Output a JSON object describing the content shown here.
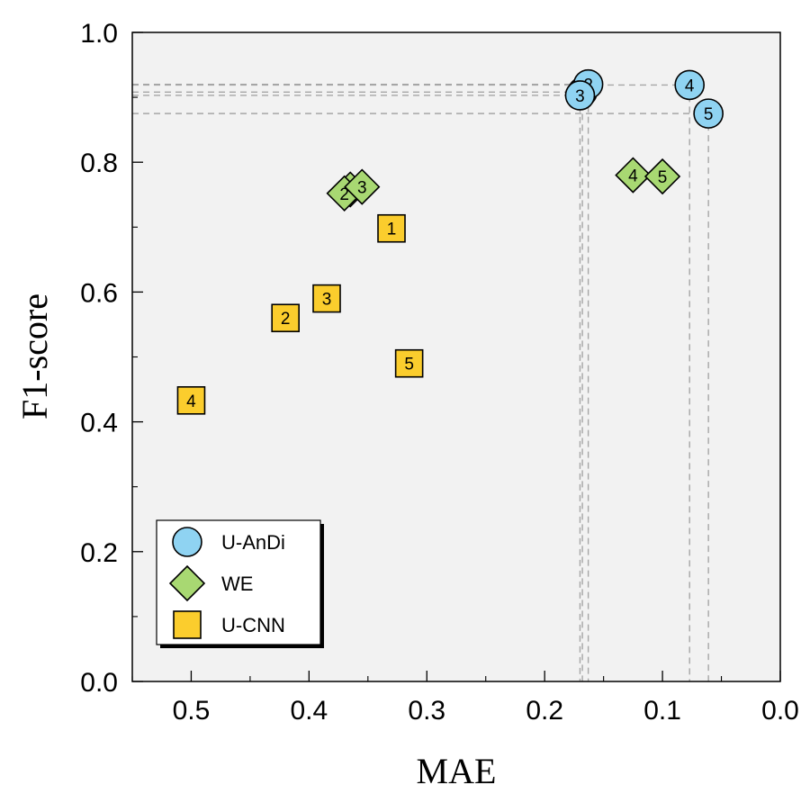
{
  "chart_data": {
    "type": "scatter",
    "title": "",
    "xlabel": "MAE",
    "ylabel": "F1-score",
    "xlim": [
      0.55,
      0.0
    ],
    "ylim": [
      0.0,
      1.0
    ],
    "x_reversed": true,
    "xticks": [
      "0.5",
      "0.4",
      "0.3",
      "0.2",
      "0.1",
      "0.0"
    ],
    "xtick_values": [
      0.5,
      0.4,
      0.3,
      0.2,
      0.1,
      0.0
    ],
    "yticks": [
      "0.0",
      "0.2",
      "0.4",
      "0.6",
      "0.8",
      "1.0"
    ],
    "ytick_values": [
      0.0,
      0.2,
      0.4,
      0.6,
      0.8,
      1.0
    ],
    "grid": false,
    "background": "#f2f2f2",
    "legend_position": "bottom-left",
    "series": [
      {
        "name": "U-AnDi",
        "marker": "circle",
        "color": "#8fd3f2",
        "guide_lines": true,
        "points": [
          {
            "label": "1",
            "x": 0.168,
            "y": 0.908
          },
          {
            "label": "2",
            "x": 0.163,
            "y": 0.92
          },
          {
            "label": "3",
            "x": 0.17,
            "y": 0.903
          },
          {
            "label": "4",
            "x": 0.077,
            "y": 0.919
          },
          {
            "label": "5",
            "x": 0.061,
            "y": 0.875
          }
        ]
      },
      {
        "name": "WE",
        "marker": "diamond",
        "color": "#a8d872",
        "guide_lines": false,
        "points": [
          {
            "label": "1",
            "x": 0.365,
            "y": 0.758
          },
          {
            "label": "2",
            "x": 0.37,
            "y": 0.752
          },
          {
            "label": "3",
            "x": 0.355,
            "y": 0.762
          },
          {
            "label": "4",
            "x": 0.125,
            "y": 0.78
          },
          {
            "label": "5",
            "x": 0.1,
            "y": 0.778
          }
        ]
      },
      {
        "name": "U-CNN",
        "marker": "square",
        "color": "#fbcd2d",
        "guide_lines": false,
        "points": [
          {
            "label": "1",
            "x": 0.33,
            "y": 0.698
          },
          {
            "label": "2",
            "x": 0.42,
            "y": 0.56
          },
          {
            "label": "3",
            "x": 0.385,
            "y": 0.59
          },
          {
            "label": "4",
            "x": 0.5,
            "y": 0.433
          },
          {
            "label": "5",
            "x": 0.315,
            "y": 0.49
          }
        ]
      }
    ]
  }
}
